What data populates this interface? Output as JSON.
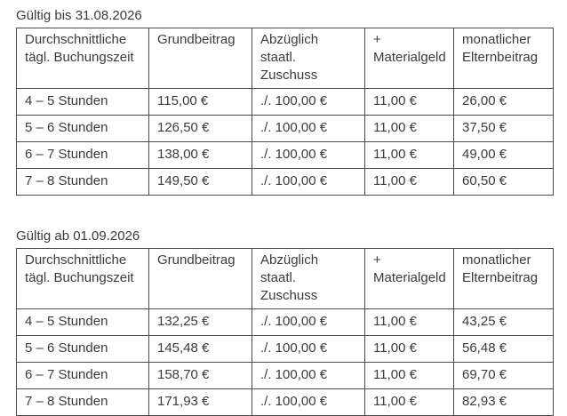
{
  "page": {
    "background": "#ffffff",
    "text_color": "#3b3b3b",
    "border_color": "#4a4a4a"
  },
  "tables": [
    {
      "title": "Gültig bis 31.08.2026",
      "headers": [
        "Durchschnittliche\ntägl. Buchungszeit",
        "Grundbeitrag",
        "Abzüglich staatl.\nZuschuss",
        "+\nMaterialgeld",
        "monatlicher\nElternbeitrag"
      ],
      "rows": [
        [
          "4 – 5 Stunden",
          "115,00 €",
          "./. 100,00 €",
          "11,00 €",
          "26,00 €"
        ],
        [
          "5 – 6 Stunden",
          "126,50 €",
          "./. 100,00 €",
          "11,00 €",
          "37,50 €"
        ],
        [
          "6 – 7 Stunden",
          "138,00 €",
          "./. 100,00 €",
          "11,00 €",
          "49,00 €"
        ],
        [
          "7 – 8 Stunden",
          "149,50 €",
          "./. 100,00 €",
          "11,00 €",
          "60,50 €"
        ]
      ]
    },
    {
      "title": "Gültig ab 01.09.2026",
      "headers": [
        "Durchschnittliche\ntägl. Buchungszeit",
        "Grundbeitrag",
        "Abzüglich staatl.\nZuschuss",
        "+\nMaterialgeld",
        "monatlicher\nElternbeitrag"
      ],
      "rows": [
        [
          "4 – 5 Stunden",
          "132,25 €",
          "./. 100,00 €",
          "11,00 €",
          "43,25 €"
        ],
        [
          "5 – 6 Stunden",
          "145,48 €",
          "./. 100,00 €",
          "11,00 €",
          "56,48 €"
        ],
        [
          "6 – 7 Stunden",
          "158,70 €",
          "./. 100,00 €",
          "11,00 €",
          "69,70 €"
        ],
        [
          "7 – 8 Stunden",
          "171,93 €",
          "./. 100,00 €",
          "11,00 €",
          "82,93 €"
        ]
      ]
    }
  ]
}
